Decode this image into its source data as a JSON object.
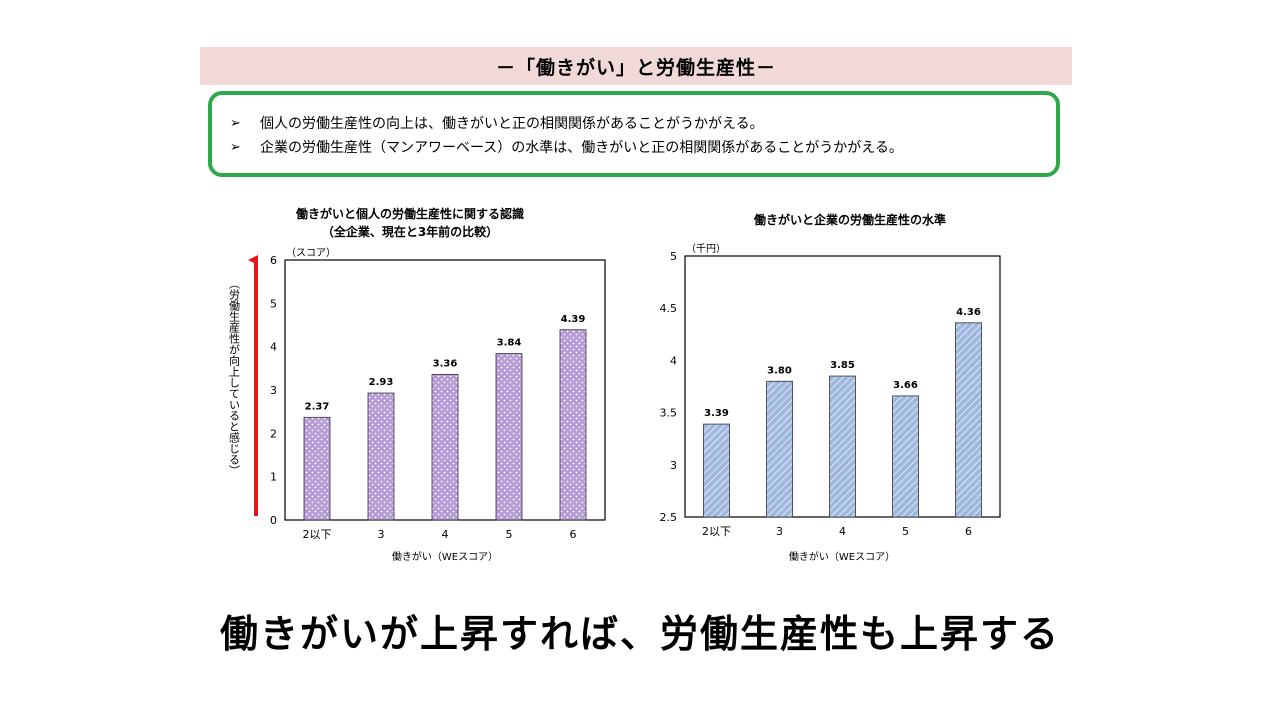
{
  "header": {
    "title": "－「働きがい」と労働生産性－"
  },
  "summary": {
    "bullet_symbol": "➢",
    "points": [
      "個人の労働生産性の向上は、働きがいと正の相関関係があることがうかがえる。",
      "企業の労働生産性（マンアワーベース）の水準は、働きがいと正の相関関係があることがうかがえる。"
    ]
  },
  "chart_data": [
    {
      "type": "bar",
      "title": "働きがいと個人の労働生産性に関する認識",
      "subtitle": "（全企業、現在と3年前の比較）",
      "categories": [
        "2以下",
        "3",
        "4",
        "5",
        "6"
      ],
      "values": [
        2.37,
        2.93,
        3.36,
        3.84,
        4.39
      ],
      "value_labels": [
        "2.37",
        "2.93",
        "3.36",
        "3.84",
        "4.39"
      ],
      "ylim": [
        0,
        6
      ],
      "yticks": [
        "0",
        "1",
        "2",
        "3",
        "4",
        "5",
        "6"
      ],
      "unit_label": "（スコア）",
      "xlabel": "働きがい（WEスコア）",
      "ylabel": "（労働生産性が向上していると感じる）",
      "bar_color": "#b79bd6",
      "arrow_color": "#e8151b"
    },
    {
      "type": "bar",
      "title": "働きがいと企業の労働生産性の水準",
      "subtitle": "",
      "categories": [
        "2以下",
        "3",
        "4",
        "5",
        "6"
      ],
      "values": [
        3.39,
        3.8,
        3.85,
        3.66,
        4.36
      ],
      "value_labels": [
        "3.39",
        "3.80",
        "3.85",
        "3.66",
        "4.36"
      ],
      "ylim": [
        2.5,
        5
      ],
      "yticks": [
        "2.5",
        "3",
        "3.5",
        "4",
        "4.5",
        "5"
      ],
      "unit_label": "（千円）",
      "xlabel": "働きがい（WEスコア）",
      "ylabel": "",
      "bar_color": "#9fb8e0"
    }
  ],
  "conclusion": "働きがいが上昇すれば、労働生産性も上昇する"
}
